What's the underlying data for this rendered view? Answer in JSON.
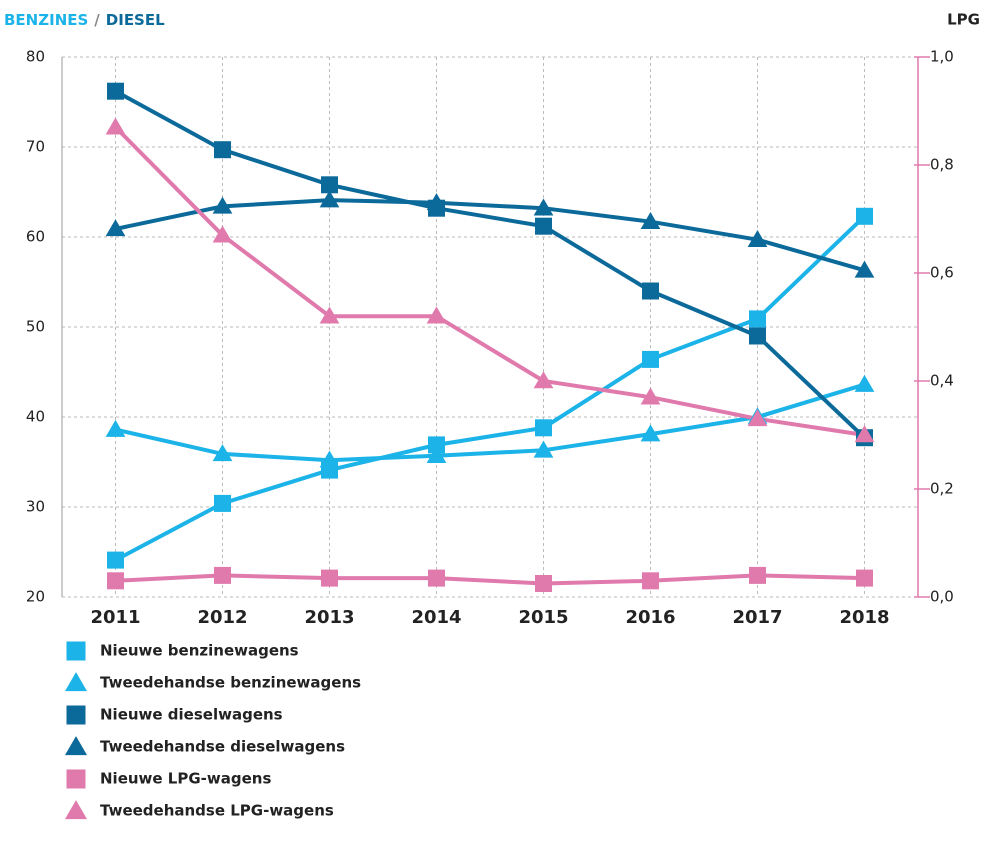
{
  "chart_data": {
    "type": "line",
    "left_axis_title": [
      {
        "text": "BENZINES",
        "color": "#1bb3e8"
      },
      {
        "text": "/",
        "color": "#888888"
      },
      {
        "text": "DIESEL",
        "color": "#0b6a9a"
      }
    ],
    "right_axis_title": {
      "text": "LPG",
      "color": "#e07aad"
    },
    "categories": [
      "2011",
      "2012",
      "2013",
      "2014",
      "2015",
      "2016",
      "2017",
      "2018"
    ],
    "ylim": [
      20,
      80
    ],
    "yticks": [
      20,
      30,
      40,
      50,
      60,
      70,
      80
    ],
    "y2lim": [
      0,
      1
    ],
    "y2ticks": [
      {
        "value": 0,
        "label": "0,0"
      },
      {
        "value": 0.2,
        "label": "0,2"
      },
      {
        "value": 0.4,
        "label": "0,4"
      },
      {
        "value": 0.6,
        "label": "0,6"
      },
      {
        "value": 0.8,
        "label": "0,8"
      },
      {
        "value": 1,
        "label": "1,0"
      }
    ],
    "y2color": "#e07aad",
    "grid": true,
    "series": [
      {
        "name": "Nieuwe benzinewagens",
        "color": "#1bb3e8",
        "marker": "square",
        "values": [
          24.1,
          30.4,
          34.1,
          36.9,
          38.8,
          46.4,
          50.9,
          62.3
        ]
      },
      {
        "name": "Tweedehandse benzinewagens",
        "color": "#1bb3e8",
        "marker": "triangle",
        "values": [
          38.6,
          35.9,
          35.2,
          35.7,
          36.3,
          38.1,
          40.0,
          43.6
        ]
      },
      {
        "name": "Nieuwe dieselwagens",
        "color": "#0b6a9a",
        "marker": "square",
        "values": [
          76.2,
          69.7,
          65.8,
          63.2,
          61.2,
          54.0,
          49.0,
          37.7
        ]
      },
      {
        "name": "Tweedehandse dieselwagens",
        "color": "#0b6a9a",
        "marker": "triangle",
        "values": [
          60.9,
          63.4,
          64.1,
          63.8,
          63.2,
          61.7,
          59.7,
          56.3
        ]
      },
      {
        "name": "Nieuwe LPG-wagens",
        "color": "#e07aad",
        "marker": "square",
        "axis": "y2",
        "values": [
          0.03,
          0.04,
          0.035,
          0.035,
          0.025,
          0.03,
          0.04,
          0.035
        ]
      },
      {
        "name": "Tweedehandse LPG-wagens",
        "color": "#e07aad",
        "marker": "triangle",
        "axis": "y2",
        "values": [
          0.87,
          0.67,
          0.52,
          0.52,
          0.4,
          0.37,
          0.33,
          0.3
        ]
      }
    ]
  }
}
